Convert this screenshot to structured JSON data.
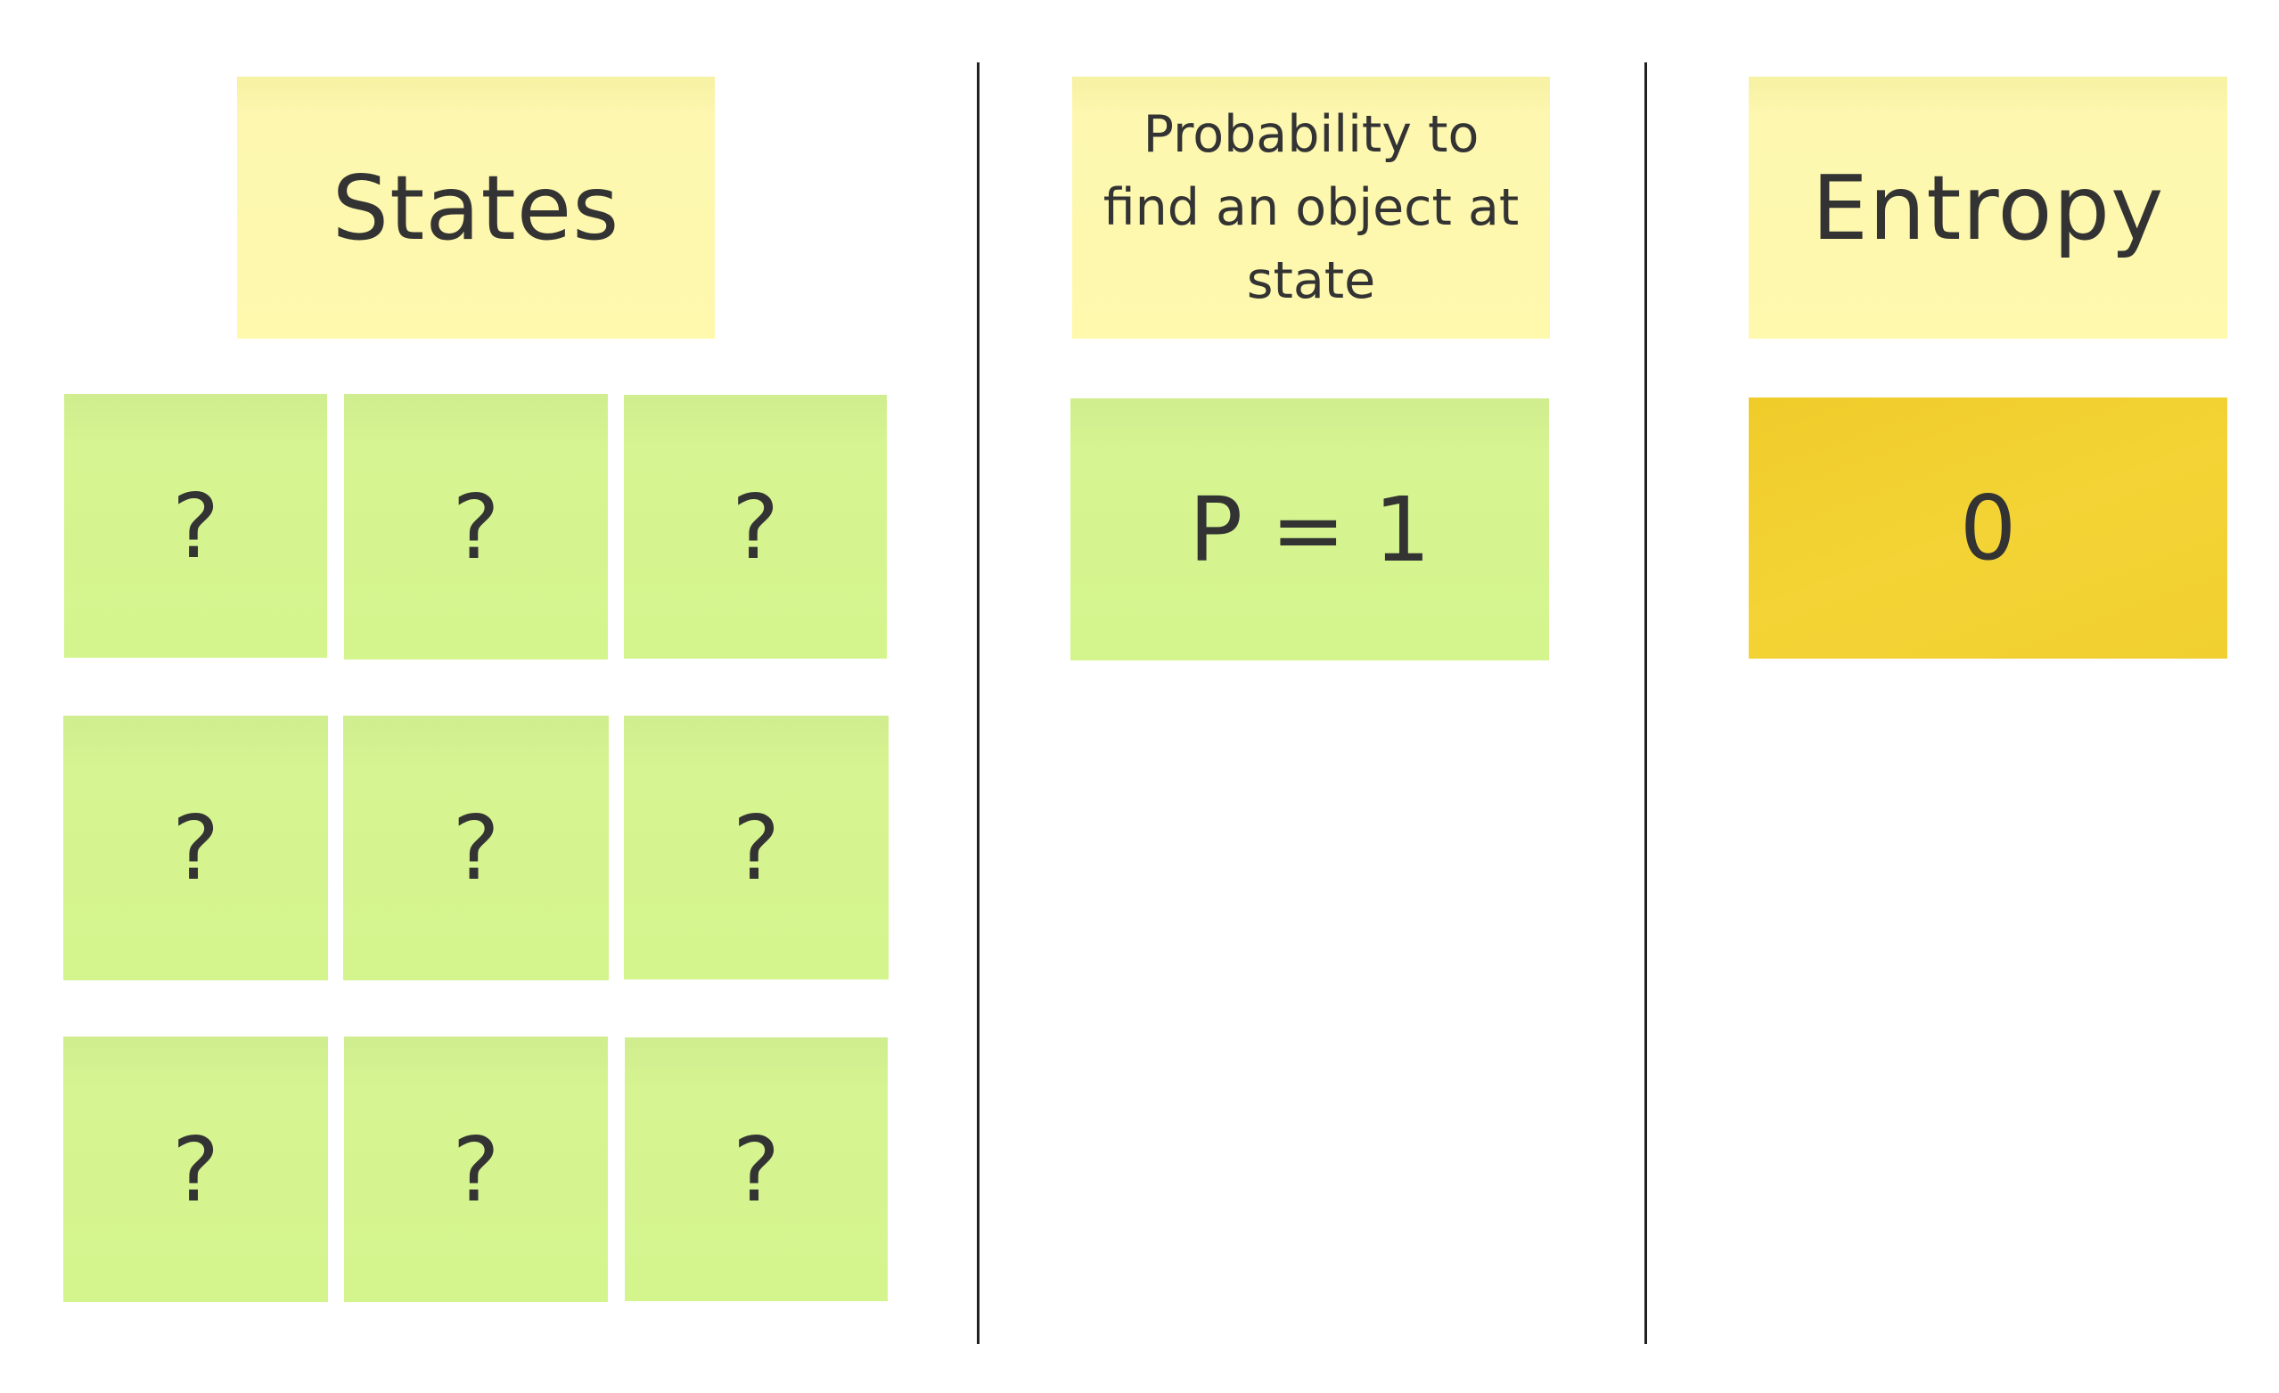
{
  "columns": {
    "states": {
      "title": "States",
      "cells": [
        "?",
        "?",
        "?",
        "?",
        "?",
        "?",
        "?",
        "?",
        "?"
      ]
    },
    "probability": {
      "title": "Probability to find an object at state",
      "value": "P = 1"
    },
    "entropy": {
      "title": "Entropy",
      "value": "0"
    }
  },
  "colors": {
    "header_note": "#fef9ad",
    "green_note": "#d4f58e",
    "entropy_note": "#f2d033",
    "divider": "#222222"
  }
}
